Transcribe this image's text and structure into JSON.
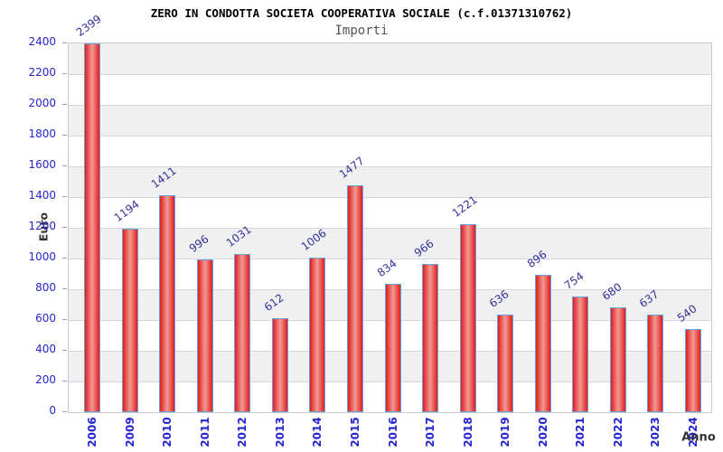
{
  "chart_data": {
    "type": "bar",
    "title": "ZERO IN CONDOTTA SOCIETA COOPERATIVA SOCIALE (c.f.01371310762)",
    "subtitle": "Importi",
    "xlabel": "Anno",
    "ylabel": "Euro",
    "categories": [
      "2006",
      "2009",
      "2010",
      "2011",
      "2012",
      "2013",
      "2014",
      "2015",
      "2016",
      "2017",
      "2018",
      "2019",
      "2020",
      "2021",
      "2022",
      "2023",
      "2024"
    ],
    "values": [
      2399,
      1194,
      1411,
      996,
      1031,
      612,
      1006,
      1477,
      834,
      966,
      1221,
      636,
      896,
      754,
      680,
      637,
      540
    ],
    "ylim": [
      0,
      2400
    ],
    "ytick_step": 200,
    "grid": true,
    "legend": "none",
    "colors": {
      "bar_edge": "#e01d1d",
      "bar_center": "#f29a92",
      "bar_border": "#68a2dc",
      "axis_tick_label": "#2424d0",
      "value_label": "#333399",
      "band_alt": "#f0f0f0",
      "gridline": "#d6d6de",
      "axis_title": "#333333",
      "title": "#000000",
      "subtitle": "#555555"
    }
  }
}
